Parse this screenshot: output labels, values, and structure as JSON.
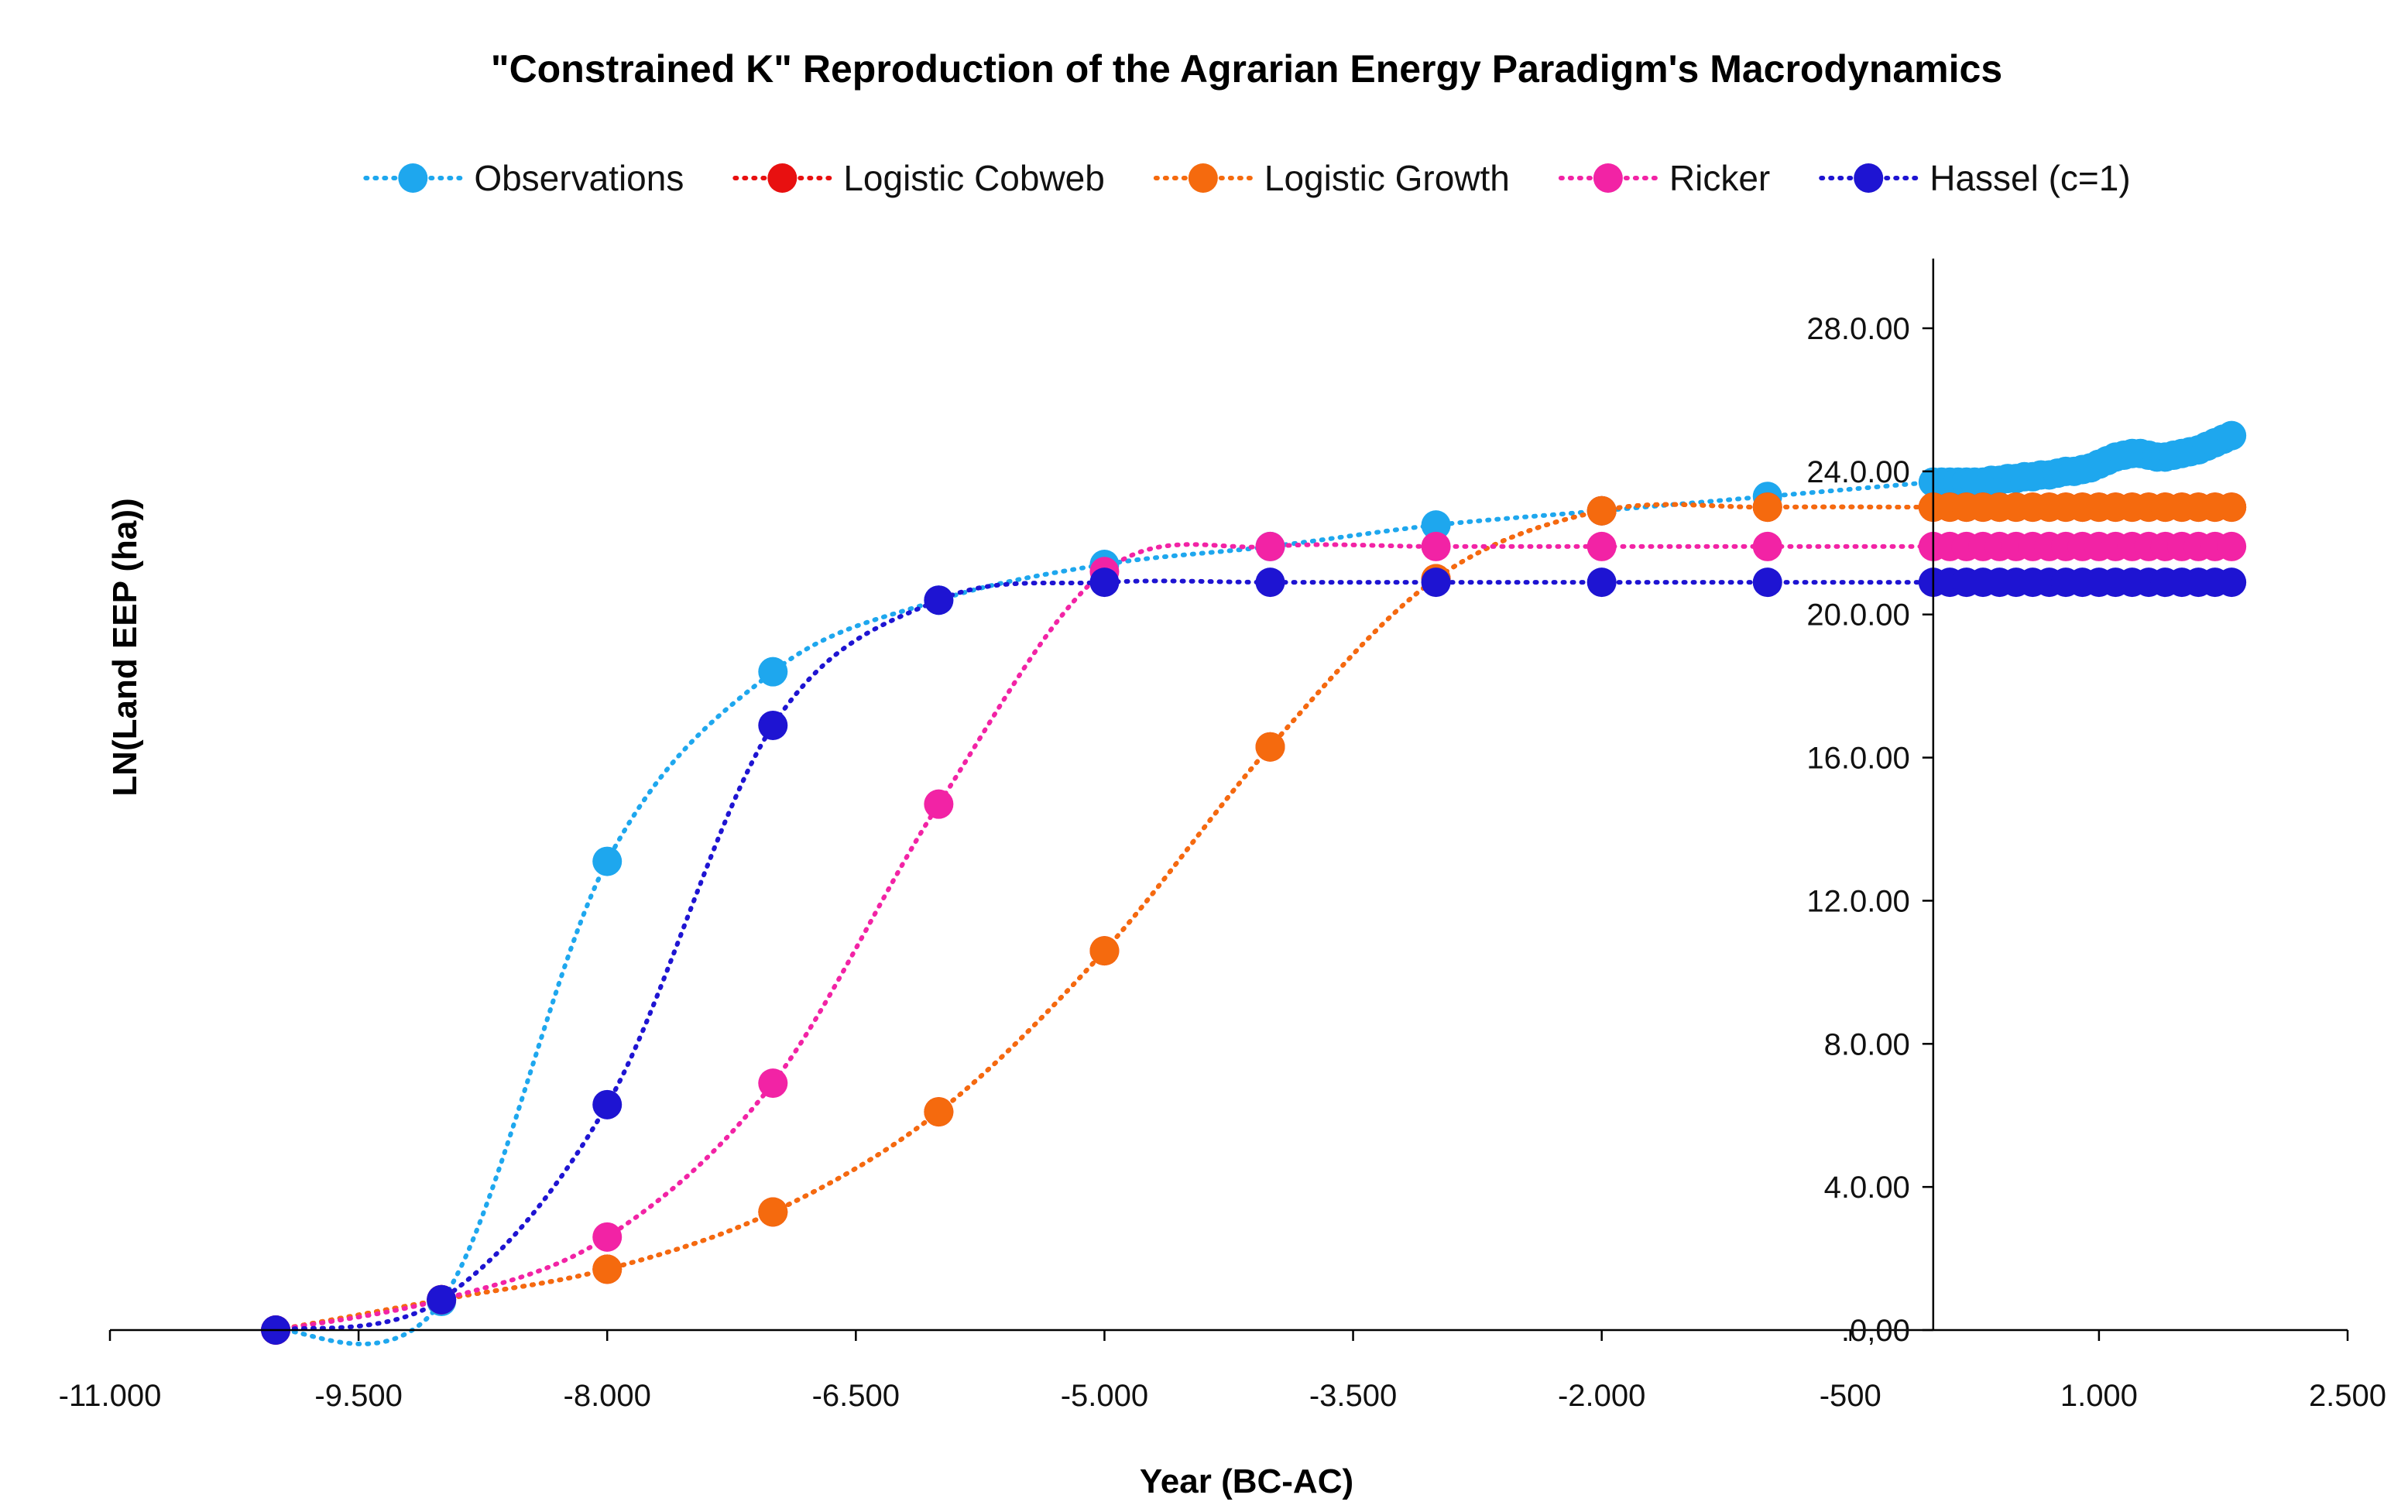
{
  "chart_data": {
    "type": "line",
    "title": "\"Constrained K\" Reproduction of the Agrarian Energy Paradigm's Macrodynamics",
    "xlabel": "Year (BC-AC)",
    "ylabel": "LN(Land EEP (ha))",
    "xlim": [
      -11000,
      2500
    ],
    "ylim": [
      0,
      30
    ],
    "x_ticks": [
      -11000,
      -9500,
      -8000,
      -6500,
      -5000,
      -3500,
      -2000,
      -500,
      1000,
      2500
    ],
    "x_tick_labels": [
      "-11.000",
      "-9.500",
      "-8.000",
      "-6.500",
      "-5.000",
      "-3.500",
      "-2.000",
      "-500",
      "1.000",
      "2.500"
    ],
    "y_ticks": [
      0,
      4,
      8,
      12,
      16,
      20,
      24,
      28
    ],
    "y_tick_labels": [
      ".0,00",
      "4.0.00",
      "8.0.00",
      "12.0.00",
      "16.0.00",
      "20.0.00",
      "24.0.00",
      "28.0.00"
    ],
    "y_axis_crosses_x": 0,
    "line_style": "dotted",
    "legend_position": "top",
    "grid": false,
    "series": [
      {
        "name": "Observations",
        "color": "#1EA7EE",
        "x": [
          -10000,
          -9000,
          -8000,
          -7000,
          -6000,
          -5000,
          -4000,
          -3000,
          -2000,
          -1000,
          0,
          50,
          100,
          150,
          200,
          250,
          300,
          350,
          400,
          450,
          500,
          550,
          600,
          650,
          700,
          750,
          800,
          850,
          900,
          950,
          1000,
          1050,
          1100,
          1150,
          1200,
          1250,
          1300,
          1350,
          1400,
          1450,
          1500,
          1550,
          1600,
          1650,
          1700,
          1750,
          1800
        ],
        "y": [
          0,
          0.8,
          13.1,
          18.4,
          20.4,
          21.4,
          21.9,
          22.5,
          22.9,
          23.3,
          23.7,
          23.7,
          23.7,
          23.7,
          23.7,
          23.7,
          23.7,
          23.75,
          23.75,
          23.8,
          23.8,
          23.85,
          23.85,
          23.9,
          23.9,
          23.95,
          24.0,
          24.0,
          24.05,
          24.1,
          24.2,
          24.3,
          24.4,
          24.45,
          24.5,
          24.5,
          24.45,
          24.4,
          24.4,
          24.45,
          24.5,
          24.55,
          24.6,
          24.7,
          24.8,
          24.9,
          25.0
        ]
      },
      {
        "name": "Logistic Cobweb",
        "color": "#E81010",
        "x": [
          -10000,
          -9000,
          -8000,
          -7000,
          -6000,
          -5000,
          -4000,
          -3000,
          -2000,
          -1000,
          0,
          100,
          200,
          300,
          400,
          500,
          600,
          700,
          800,
          900,
          1000,
          1100,
          1200,
          1300,
          1400,
          1500,
          1600,
          1700,
          1800
        ],
        "y": [
          0,
          0.85,
          1.7,
          3.3,
          6.1,
          10.6,
          16.3,
          21.0,
          22.9,
          23.0,
          23.0,
          23.0,
          23.0,
          23.0,
          23.0,
          23.0,
          23.0,
          23.0,
          23.0,
          23.0,
          23.0,
          23.0,
          23.0,
          23.0,
          23.0,
          23.0,
          23.0,
          23.0,
          23.0
        ]
      },
      {
        "name": "Logistic Growth",
        "color": "#F56A0E",
        "x": [
          -10000,
          -9000,
          -8000,
          -7000,
          -6000,
          -5000,
          -4000,
          -3000,
          -2000,
          -1000,
          0,
          100,
          200,
          300,
          400,
          500,
          600,
          700,
          800,
          900,
          1000,
          1100,
          1200,
          1300,
          1400,
          1500,
          1600,
          1700,
          1800
        ],
        "y": [
          0,
          0.85,
          1.7,
          3.3,
          6.1,
          10.6,
          16.3,
          21.0,
          22.9,
          23.0,
          23.0,
          23.0,
          23.0,
          23.0,
          23.0,
          23.0,
          23.0,
          23.0,
          23.0,
          23.0,
          23.0,
          23.0,
          23.0,
          23.0,
          23.0,
          23.0,
          23.0,
          23.0,
          23.0
        ]
      },
      {
        "name": "Ricker",
        "color": "#F223A5",
        "x": [
          -10000,
          -9000,
          -8000,
          -7000,
          -6000,
          -5000,
          -4000,
          -3000,
          -2000,
          -1000,
          0,
          100,
          200,
          300,
          400,
          500,
          600,
          700,
          800,
          900,
          1000,
          1100,
          1200,
          1300,
          1400,
          1500,
          1600,
          1700,
          1800
        ],
        "y": [
          0,
          0.85,
          2.6,
          6.9,
          14.7,
          21.2,
          21.9,
          21.9,
          21.9,
          21.9,
          21.9,
          21.9,
          21.9,
          21.9,
          21.9,
          21.9,
          21.9,
          21.9,
          21.9,
          21.9,
          21.9,
          21.9,
          21.9,
          21.9,
          21.9,
          21.9,
          21.9,
          21.9,
          21.9
        ]
      },
      {
        "name": "Hassel (c=1)",
        "color": "#1E14D2",
        "x": [
          -10000,
          -9000,
          -8000,
          -7000,
          -6000,
          -5000,
          -4000,
          -3000,
          -2000,
          -1000,
          0,
          100,
          200,
          300,
          400,
          500,
          600,
          700,
          800,
          900,
          1000,
          1100,
          1200,
          1300,
          1400,
          1500,
          1600,
          1700,
          1800
        ],
        "y": [
          0,
          0.85,
          6.3,
          16.9,
          20.4,
          20.9,
          20.9,
          20.9,
          20.9,
          20.9,
          20.9,
          20.9,
          20.9,
          20.9,
          20.9,
          20.9,
          20.9,
          20.9,
          20.9,
          20.9,
          20.9,
          20.9,
          20.9,
          20.9,
          20.9,
          20.9,
          20.9,
          20.9,
          20.9
        ]
      }
    ]
  }
}
